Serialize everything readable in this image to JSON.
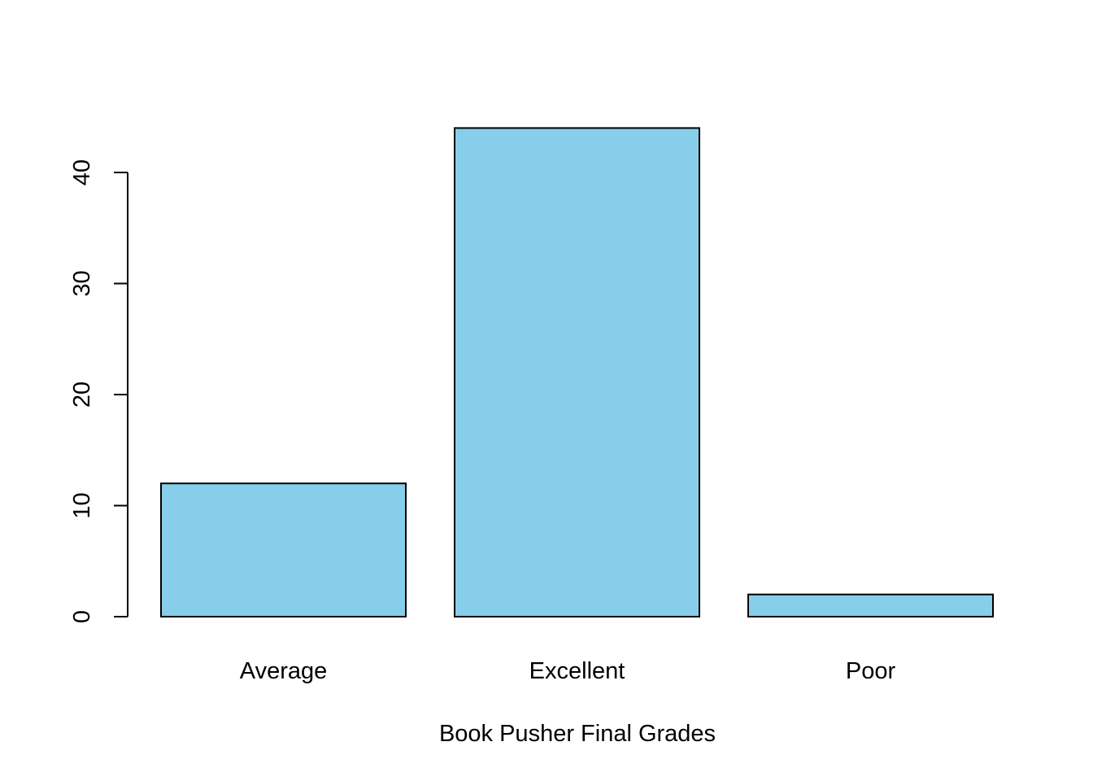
{
  "chart_data": {
    "type": "bar",
    "title": "",
    "xlabel": "Book Pusher Final Grades",
    "ylabel": "",
    "categories": [
      "Average",
      "Excellent",
      "Poor"
    ],
    "values": [
      12,
      44,
      2
    ],
    "ylim": [
      0,
      44
    ],
    "yticks": [
      0,
      10,
      20,
      30,
      40
    ],
    "ytick_labels": [
      "0",
      "10",
      "20",
      "30",
      "40"
    ],
    "grid": false,
    "legend": "none",
    "colors": {
      "bar_fill": "#87CEEB",
      "bar_stroke": "#000000",
      "axis": "#000000"
    }
  }
}
